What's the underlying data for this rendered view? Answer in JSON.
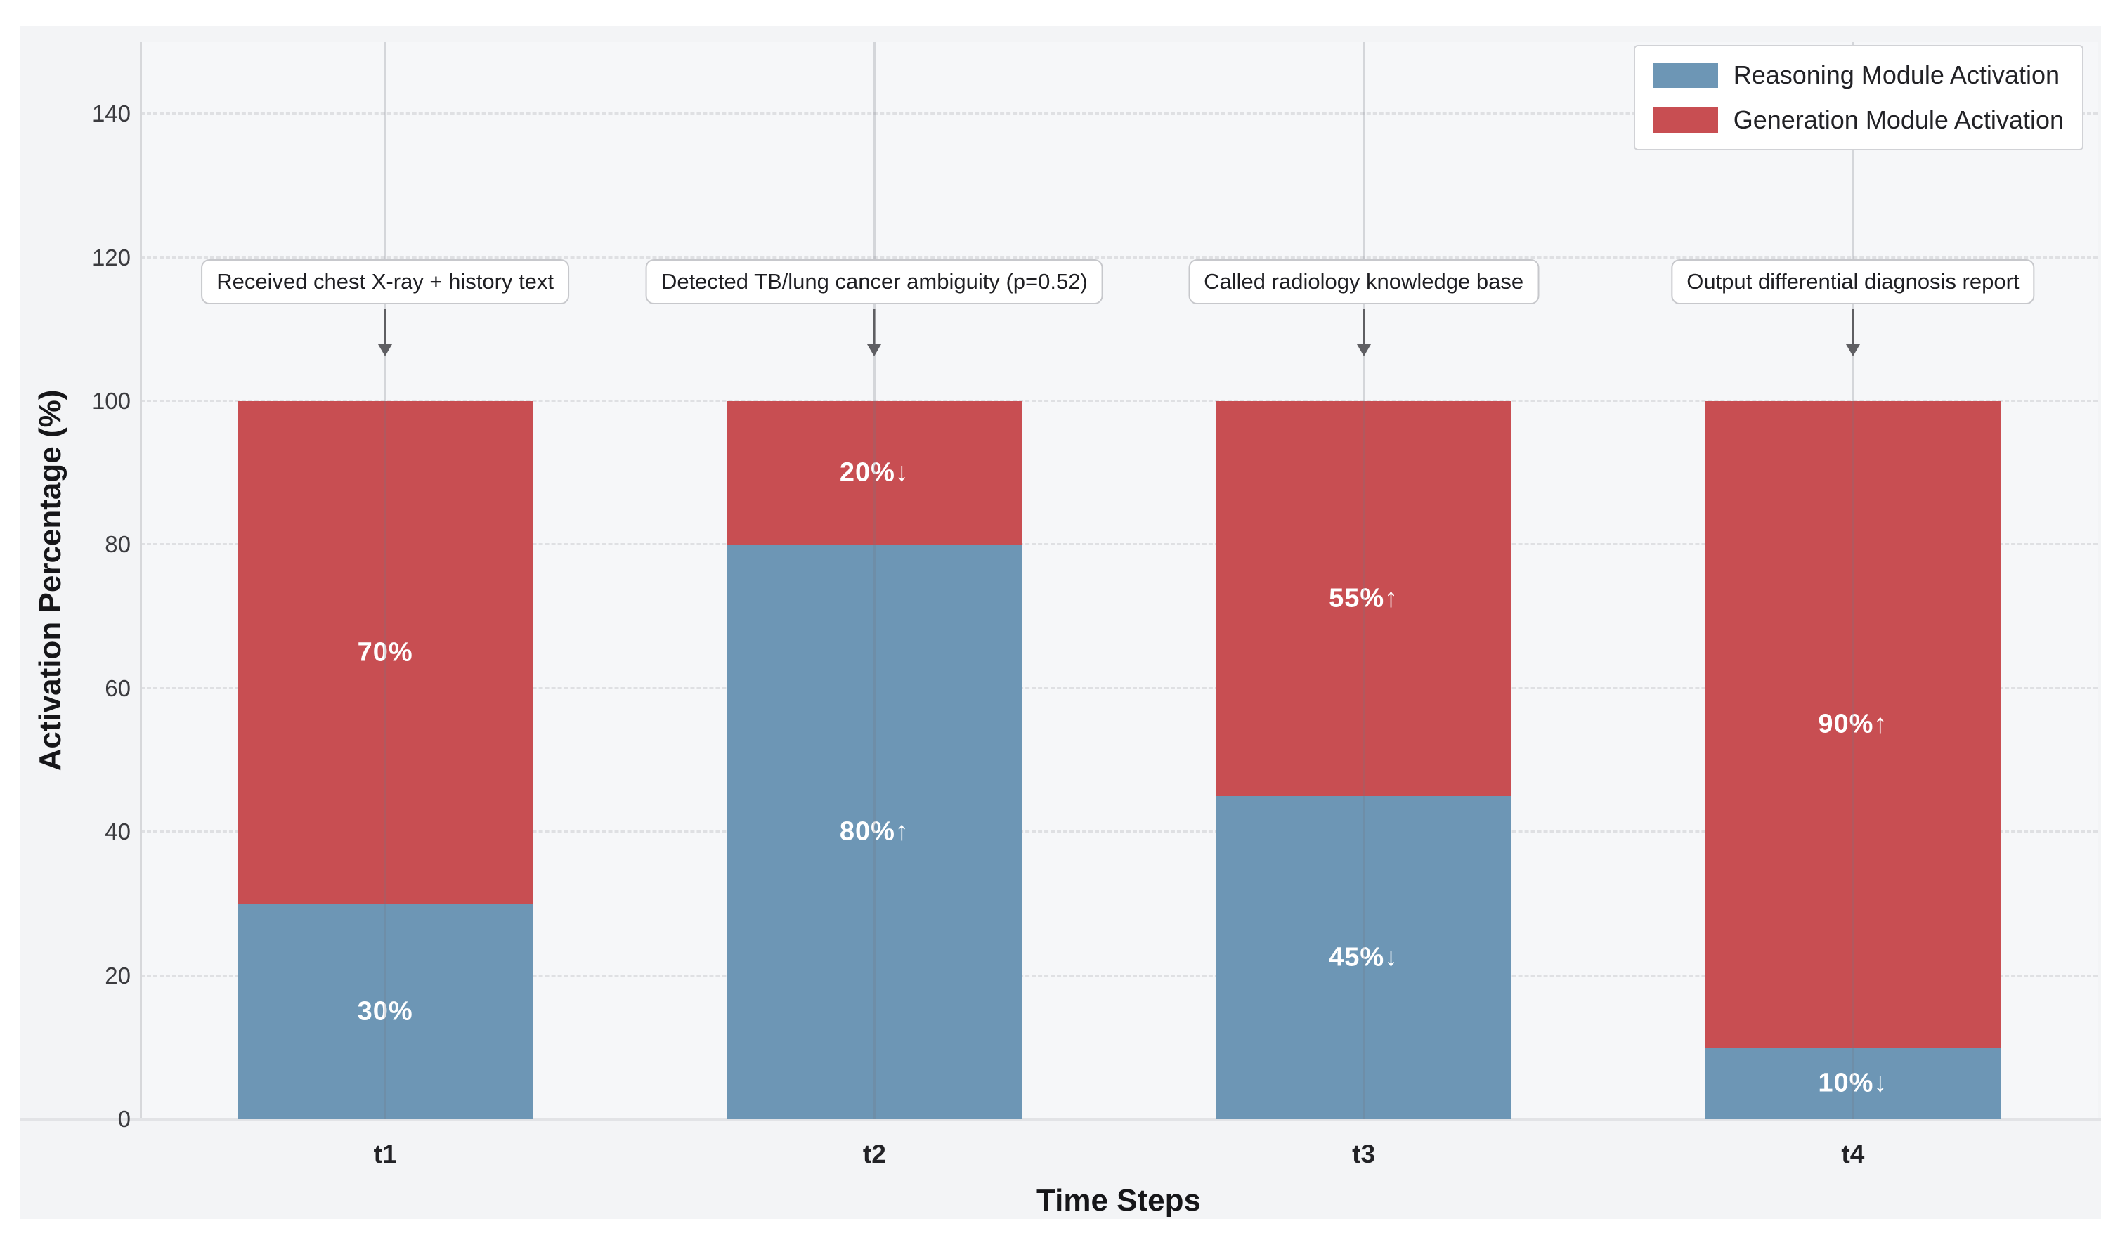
{
  "figure": {
    "xlabel": "Time Steps",
    "ylabel": "Activation Percentage (%)"
  },
  "legend": {
    "position": "upper right",
    "items": [
      {
        "label": "Reasoning Module Activation",
        "color": "#6d96b5"
      },
      {
        "label": "Generation Module Activation",
        "color": "#c84e52"
      }
    ]
  },
  "chart_data": {
    "type": "bar",
    "stacked": true,
    "title": "",
    "xlabel": "Time Steps",
    "ylabel": "Activation Percentage (%)",
    "categories": [
      "t1",
      "t2",
      "t3",
      "t4"
    ],
    "series": [
      {
        "name": "Reasoning Module Activation",
        "color": "#6d96b5",
        "values": [
          30,
          80,
          45,
          10
        ],
        "bar_labels": [
          "30%",
          "80%↑",
          "45%↓",
          "10%↓"
        ]
      },
      {
        "name": "Generation Module Activation",
        "color": "#c84e52",
        "values": [
          70,
          20,
          55,
          90
        ],
        "bar_labels": [
          "70%",
          "20%↓",
          "55%↑",
          "90%↑"
        ]
      }
    ],
    "annotations": [
      "Received chest X-ray + history text",
      "Detected TB/lung cancer ambiguity (p=0.52)",
      "Called radiology knowledge base",
      "Output differential diagnosis report"
    ],
    "ylim": [
      0,
      150
    ],
    "yticks": [
      0,
      20,
      40,
      60,
      80,
      100,
      120,
      140
    ],
    "grid": "horizontal dashed gridlines; vertical line at each category center",
    "legend_position": "upper right",
    "bar_label_color": "#ffffff"
  },
  "colors": {
    "figure_background": "#ffffff",
    "panel_background": "#f3f4f6",
    "axes_background": "#f6f7f9",
    "gridline": "#dfe0e3",
    "spine": "#d7d8db",
    "annotation_border": "#c7c8cc",
    "arrow": "#5f5f63",
    "tick_text": "#3b3b3f"
  }
}
